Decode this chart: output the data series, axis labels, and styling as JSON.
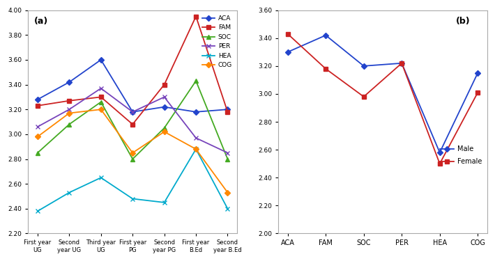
{
  "chart_a": {
    "x_labels": [
      "First year\nUG",
      "Second\nyear UG",
      "Third year\nUG",
      "First year\nPG",
      "Second\nyear PG",
      "First year\nB.Ed",
      "Second\nyear B.Ed"
    ],
    "series": {
      "ACA": {
        "values": [
          3.28,
          3.42,
          3.6,
          3.18,
          3.22,
          3.18,
          3.2
        ],
        "color": "#2244CC",
        "marker": "D",
        "linestyle": "-"
      },
      "FAM": {
        "values": [
          3.23,
          3.27,
          3.3,
          3.08,
          3.4,
          3.95,
          3.18
        ],
        "color": "#CC2222",
        "marker": "s",
        "linestyle": "-"
      },
      "SOC": {
        "values": [
          2.85,
          3.08,
          3.26,
          2.8,
          3.05,
          3.43,
          2.8
        ],
        "color": "#44AA22",
        "marker": "^",
        "linestyle": "-"
      },
      "PER": {
        "values": [
          3.06,
          3.2,
          3.37,
          3.18,
          3.3,
          2.97,
          2.85
        ],
        "color": "#7744BB",
        "marker": "x",
        "linestyle": "-"
      },
      "HEA": {
        "values": [
          2.38,
          2.53,
          2.65,
          2.48,
          2.45,
          2.88,
          2.4
        ],
        "color": "#00AACC",
        "marker": "x",
        "linestyle": "-"
      },
      "COG": {
        "values": [
          2.98,
          3.17,
          3.2,
          2.85,
          3.02,
          2.88,
          2.53
        ],
        "color": "#FF8800",
        "marker": "D",
        "linestyle": "-"
      }
    },
    "ylim": [
      2.2,
      4.0
    ],
    "yticks": [
      2.2,
      2.4,
      2.6,
      2.8,
      3.0,
      3.2,
      3.4,
      3.6,
      3.8,
      4.0
    ],
    "label": "(a)"
  },
  "chart_b": {
    "x_labels": [
      "ACA",
      "FAM",
      "SOC",
      "PER",
      "HEA",
      "COG"
    ],
    "series": {
      "Male": {
        "values": [
          3.3,
          3.42,
          3.2,
          3.22,
          2.58,
          3.15
        ],
        "color": "#2244CC",
        "marker": "D",
        "linestyle": "-"
      },
      "Female": {
        "values": [
          3.43,
          3.18,
          2.98,
          3.22,
          2.5,
          3.01
        ],
        "color": "#CC2222",
        "marker": "s",
        "linestyle": "-"
      }
    },
    "ylim": [
      2.0,
      3.6
    ],
    "yticks": [
      2.0,
      2.2,
      2.4,
      2.6,
      2.8,
      3.0,
      3.2,
      3.4,
      3.6
    ],
    "label": "(b)"
  },
  "bg_color": "#FFFFFF",
  "border_color": "#AAAAAA"
}
